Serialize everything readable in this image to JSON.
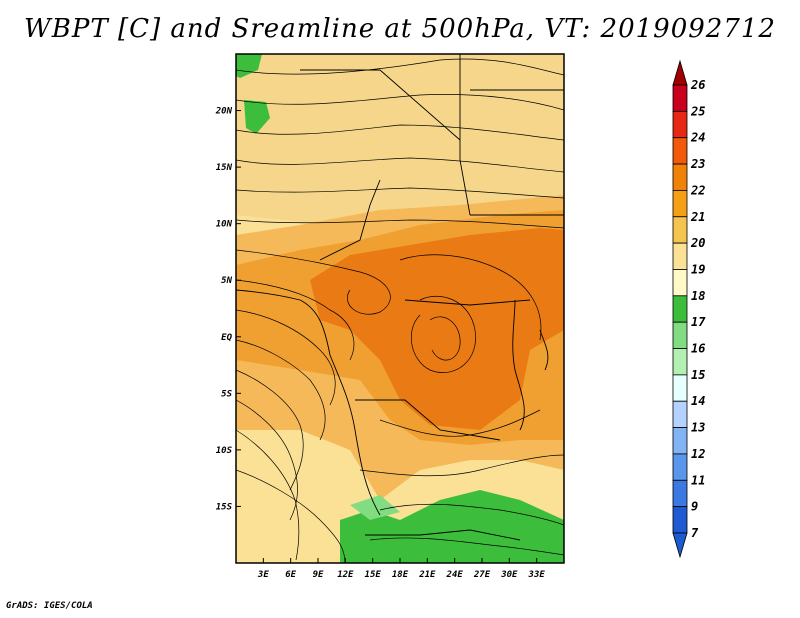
{
  "title": "WBPT [C] and Sreamline at 500hPa, VT: 2019092712",
  "credit": "GrADS: IGES/COLA",
  "map": {
    "lon_range": [
      0,
      36
    ],
    "lat_range": [
      -20,
      25
    ],
    "x_ticks": [
      "3E",
      "6E",
      "9E",
      "12E",
      "15E",
      "18E",
      "21E",
      "24E",
      "27E",
      "30E",
      "33E"
    ],
    "x_tick_lons": [
      3,
      6,
      9,
      12,
      15,
      18,
      21,
      24,
      27,
      30,
      33
    ],
    "y_ticks": [
      "20N",
      "15N",
      "10N",
      "5N",
      "EQ",
      "5S",
      "10S",
      "15S"
    ],
    "y_tick_lats": [
      20,
      15,
      10,
      5,
      0,
      -5,
      -10,
      -15
    ]
  },
  "colorbar": {
    "levels": [
      "26",
      "25",
      "24",
      "23",
      "22",
      "21",
      "20",
      "19",
      "18",
      "17",
      "16",
      "15",
      "14",
      "13",
      "12",
      "11",
      "9",
      "7"
    ],
    "colors": [
      "#a00000",
      "#c8001e",
      "#e62814",
      "#f05a0a",
      "#f0820a",
      "#f5a014",
      "#f5c350",
      "#fae196",
      "#fffac8",
      "#3cbe3c",
      "#82dc82",
      "#b4f0b4",
      "#e6ffff",
      "#b4d2ff",
      "#82b4f5",
      "#5a96eb",
      "#3c78e1",
      "#1e5ad2"
    ]
  }
}
